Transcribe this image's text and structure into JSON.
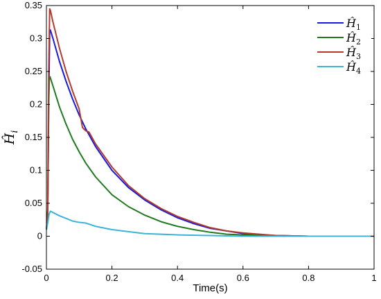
{
  "chart_data": {
    "type": "line",
    "title": "",
    "xlabel": "Time(s)",
    "ylabel": "Ĥ_i",
    "ylabel_parts": {
      "base": "Ĥ",
      "sub": "i"
    },
    "xlim": [
      0,
      1
    ],
    "ylim": [
      -0.05,
      0.35
    ],
    "xticks": [
      0,
      0.2,
      0.4,
      0.6,
      0.8,
      1
    ],
    "xtick_labels": [
      "0",
      "0.2",
      "0.4",
      "0.6",
      "0.8",
      "1"
    ],
    "yticks": [
      -0.05,
      0,
      0.05,
      0.1,
      0.15,
      0.2,
      0.25,
      0.3,
      0.35
    ],
    "ytick_labels": [
      "-0.05",
      "0",
      "0.05",
      "0.1",
      "0.15",
      "0.2",
      "0.25",
      "0.3",
      "0.35"
    ],
    "grid": false,
    "legend_position": "top-right",
    "series": [
      {
        "name": "Ĥ_1",
        "label_base": "Ĥ",
        "label_sub": "1",
        "color": "#1a1adf",
        "points": [
          [
            0,
            0.01
          ],
          [
            0.004,
            0.03
          ],
          [
            0.007,
            0.2
          ],
          [
            0.01,
            0.31
          ],
          [
            0.012,
            0.313
          ],
          [
            0.02,
            0.3
          ],
          [
            0.04,
            0.265
          ],
          [
            0.06,
            0.235
          ],
          [
            0.08,
            0.208
          ],
          [
            0.1,
            0.184
          ],
          [
            0.12,
            0.163
          ],
          [
            0.15,
            0.136
          ],
          [
            0.2,
            0.1
          ],
          [
            0.25,
            0.074
          ],
          [
            0.3,
            0.055
          ],
          [
            0.35,
            0.04
          ],
          [
            0.4,
            0.028
          ],
          [
            0.45,
            0.019
          ],
          [
            0.5,
            0.012
          ],
          [
            0.55,
            0.008
          ],
          [
            0.6,
            0.004
          ],
          [
            0.65,
            0.002
          ],
          [
            0.7,
            0.001
          ],
          [
            0.8,
            0
          ],
          [
            0.9,
            0
          ],
          [
            1,
            0
          ]
        ]
      },
      {
        "name": "Ĥ_2",
        "label_base": "Ĥ",
        "label_sub": "2",
        "color": "#1f7a1f",
        "points": [
          [
            0,
            0.01
          ],
          [
            0.004,
            0.03
          ],
          [
            0.007,
            0.2
          ],
          [
            0.009,
            0.24
          ],
          [
            0.011,
            0.242
          ],
          [
            0.02,
            0.228
          ],
          [
            0.04,
            0.196
          ],
          [
            0.06,
            0.17
          ],
          [
            0.08,
            0.147
          ],
          [
            0.1,
            0.128
          ],
          [
            0.12,
            0.111
          ],
          [
            0.15,
            0.09
          ],
          [
            0.2,
            0.063
          ],
          [
            0.25,
            0.045
          ],
          [
            0.3,
            0.032
          ],
          [
            0.35,
            0.022
          ],
          [
            0.4,
            0.015
          ],
          [
            0.45,
            0.01
          ],
          [
            0.5,
            0.006
          ],
          [
            0.55,
            0.003
          ],
          [
            0.6,
            0.002
          ],
          [
            0.7,
            0.001
          ],
          [
            0.8,
            0
          ],
          [
            0.9,
            0
          ],
          [
            1,
            0
          ]
        ]
      },
      {
        "name": "Ĥ_3",
        "label_base": "Ĥ",
        "label_sub": "3",
        "color": "#b03a2e",
        "points": [
          [
            0,
            0.01
          ],
          [
            0.004,
            0.04
          ],
          [
            0.007,
            0.25
          ],
          [
            0.01,
            0.345
          ],
          [
            0.012,
            0.343
          ],
          [
            0.02,
            0.325
          ],
          [
            0.04,
            0.285
          ],
          [
            0.06,
            0.25
          ],
          [
            0.08,
            0.22
          ],
          [
            0.1,
            0.193
          ],
          [
            0.11,
            0.165
          ],
          [
            0.12,
            0.16
          ],
          [
            0.13,
            0.158
          ],
          [
            0.15,
            0.14
          ],
          [
            0.2,
            0.105
          ],
          [
            0.25,
            0.077
          ],
          [
            0.3,
            0.057
          ],
          [
            0.35,
            0.042
          ],
          [
            0.4,
            0.03
          ],
          [
            0.45,
            0.021
          ],
          [
            0.5,
            0.013
          ],
          [
            0.55,
            0.008
          ],
          [
            0.6,
            0.005
          ],
          [
            0.65,
            0.003
          ],
          [
            0.7,
            0.001
          ],
          [
            0.8,
            0
          ],
          [
            0.9,
            0
          ],
          [
            1,
            0
          ]
        ]
      },
      {
        "name": "Ĥ_4",
        "label_base": "Ĥ",
        "label_sub": "4",
        "color": "#3bb4d6",
        "points": [
          [
            0,
            0.01
          ],
          [
            0.004,
            0.02
          ],
          [
            0.008,
            0.033
          ],
          [
            0.012,
            0.038
          ],
          [
            0.02,
            0.036
          ],
          [
            0.04,
            0.031
          ],
          [
            0.06,
            0.027
          ],
          [
            0.08,
            0.023
          ],
          [
            0.1,
            0.021
          ],
          [
            0.12,
            0.02
          ],
          [
            0.15,
            0.015
          ],
          [
            0.2,
            0.01
          ],
          [
            0.25,
            0.007
          ],
          [
            0.3,
            0.004
          ],
          [
            0.35,
            0.003
          ],
          [
            0.4,
            0.002
          ],
          [
            0.5,
            0.001
          ],
          [
            0.6,
            0
          ],
          [
            0.7,
            0
          ],
          [
            0.8,
            0
          ],
          [
            0.9,
            0
          ],
          [
            1,
            0
          ]
        ]
      }
    ]
  }
}
